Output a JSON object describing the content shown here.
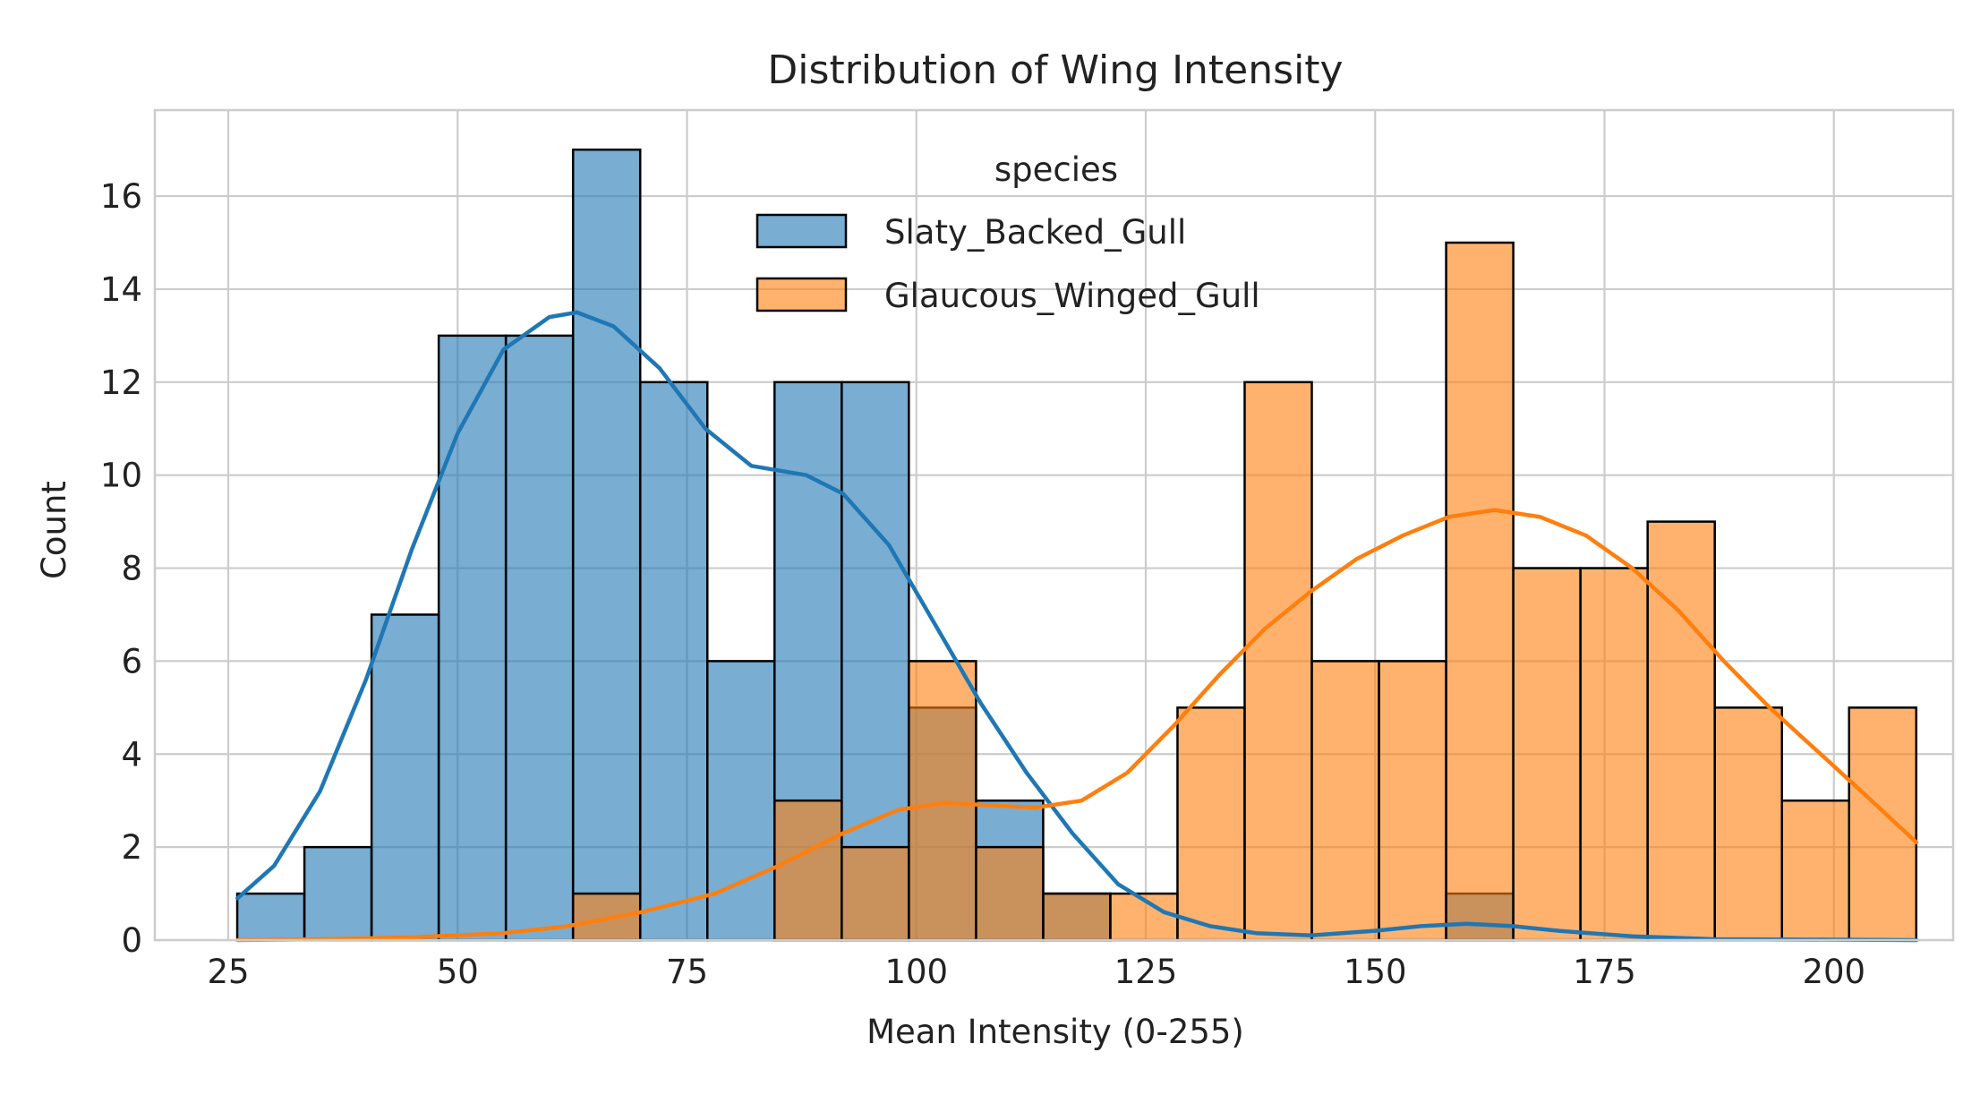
{
  "chart_data": {
    "type": "bar",
    "title": "Distribution of Wing Intensity",
    "xlabel": "Mean Intensity (0-255)",
    "ylabel": "Count",
    "xlim": [
      17,
      213
    ],
    "ylim": [
      0,
      17.85
    ],
    "xticks": [
      25,
      50,
      75,
      100,
      125,
      150,
      175,
      200
    ],
    "yticks": [
      0,
      2,
      4,
      6,
      8,
      10,
      12,
      14,
      16
    ],
    "grid": true,
    "bin_edges": [
      25.98,
      33.3,
      40.62,
      47.94,
      55.26,
      62.58,
      69.9,
      77.22,
      84.54,
      91.86,
      99.18,
      106.5,
      113.82,
      121.14,
      128.46,
      135.78,
      143.1,
      150.42,
      157.74,
      165.06,
      172.38,
      179.7,
      187.02,
      194.34,
      201.66,
      208.98
    ],
    "series": [
      {
        "name": "Slaty_Backed_Gull",
        "color": "#1f77b4",
        "counts": [
          1,
          2,
          7,
          13,
          13,
          17,
          12,
          6,
          12,
          12,
          5,
          3,
          1,
          0,
          0,
          0,
          0,
          0,
          1,
          0,
          0,
          0,
          0,
          0,
          0
        ],
        "kde": [
          [
            26,
            0.9
          ],
          [
            30,
            1.6
          ],
          [
            35,
            3.2
          ],
          [
            40,
            5.6
          ],
          [
            45,
            8.4
          ],
          [
            50,
            10.9
          ],
          [
            55,
            12.7
          ],
          [
            60,
            13.4
          ],
          [
            63,
            13.5
          ],
          [
            67,
            13.2
          ],
          [
            72,
            12.3
          ],
          [
            77,
            11.0
          ],
          [
            82,
            10.2
          ],
          [
            88,
            10.0
          ],
          [
            92,
            9.6
          ],
          [
            97,
            8.5
          ],
          [
            102,
            6.8
          ],
          [
            107,
            5.1
          ],
          [
            112,
            3.6
          ],
          [
            117,
            2.3
          ],
          [
            122,
            1.2
          ],
          [
            127,
            0.6
          ],
          [
            132,
            0.3
          ],
          [
            137,
            0.15
          ],
          [
            143,
            0.1
          ],
          [
            150,
            0.2
          ],
          [
            155,
            0.3
          ],
          [
            160,
            0.35
          ],
          [
            165,
            0.3
          ],
          [
            170,
            0.2
          ],
          [
            178,
            0.08
          ],
          [
            187,
            0.02
          ],
          [
            200,
            0.01
          ],
          [
            209,
            0.0
          ]
        ]
      },
      {
        "name": "Glaucous_Winged_Gull",
        "color": "#ff7f0e",
        "counts": [
          0,
          0,
          0,
          0,
          0,
          1,
          0,
          0,
          3,
          2,
          6,
          2,
          1,
          1,
          5,
          12,
          6,
          6,
          15,
          8,
          8,
          9,
          5,
          3,
          5
        ],
        "kde": [
          [
            26,
            0.0
          ],
          [
            35,
            0.02
          ],
          [
            45,
            0.06
          ],
          [
            55,
            0.15
          ],
          [
            62,
            0.3
          ],
          [
            70,
            0.6
          ],
          [
            78,
            1.0
          ],
          [
            85,
            1.6
          ],
          [
            92,
            2.3
          ],
          [
            98,
            2.8
          ],
          [
            103,
            2.95
          ],
          [
            108,
            2.9
          ],
          [
            113,
            2.85
          ],
          [
            118,
            3.0
          ],
          [
            123,
            3.6
          ],
          [
            128,
            4.6
          ],
          [
            133,
            5.7
          ],
          [
            138,
            6.7
          ],
          [
            143,
            7.5
          ],
          [
            148,
            8.2
          ],
          [
            153,
            8.7
          ],
          [
            158,
            9.1
          ],
          [
            163,
            9.25
          ],
          [
            168,
            9.1
          ],
          [
            173,
            8.7
          ],
          [
            178,
            8.0
          ],
          [
            183,
            7.1
          ],
          [
            188,
            6.0
          ],
          [
            193,
            5.0
          ],
          [
            198,
            4.1
          ],
          [
            203,
            3.2
          ],
          [
            209,
            2.1
          ]
        ]
      }
    ],
    "legend": {
      "title": "species",
      "placement": "top-center",
      "entries": [
        "Slaty_Backed_Gull",
        "Glaucous_Winged_Gull"
      ]
    }
  }
}
